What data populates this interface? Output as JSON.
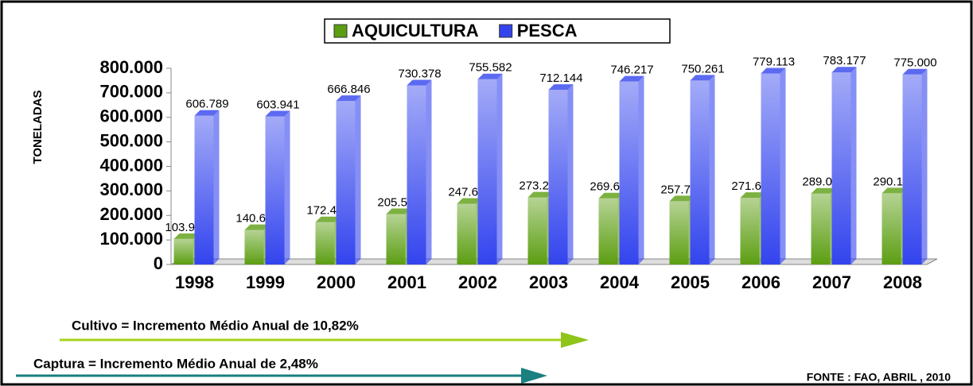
{
  "chart_data": {
    "type": "bar",
    "ylabel": "TONELADAS",
    "categories": [
      "1998",
      "1999",
      "2000",
      "2001",
      "2002",
      "2003",
      "2004",
      "2005",
      "2006",
      "2007",
      "2008"
    ],
    "series": [
      {
        "name": "AQUICULTURA",
        "color": "#5c9e12",
        "values": [
          103915,
          140657,
          172450,
          205567,
          247678,
          273268,
          269699,
          257783,
          271696,
          289050,
          290186
        ],
        "value_labels": [
          "103.915",
          "140.657",
          "172.450",
          "205.567",
          "247.678",
          "273.268",
          "269.699",
          "257.783",
          "271.696",
          "289.050",
          "290.186"
        ]
      },
      {
        "name": "PESCA",
        "color": "#3344ee",
        "values": [
          606789,
          603941,
          666846,
          730378,
          755582,
          712144,
          746217,
          750261,
          779113,
          783177,
          775000
        ],
        "value_labels": [
          "606.789",
          "603.941",
          "666.846",
          "730.378",
          "755.582",
          "712.144",
          "746.217",
          "750.261",
          "779.113",
          "783.177",
          "775.000"
        ]
      }
    ],
    "ylim": [
      0,
      800000
    ],
    "yticks": [
      0,
      {
        "value": 100000,
        "label": "100.000"
      },
      {
        "value": 200000,
        "label": "200.000"
      },
      {
        "value": 300000,
        "label": "300.000"
      },
      {
        "value": 400000,
        "label": "400.000"
      },
      {
        "value": 500000,
        "label": "500.000"
      },
      {
        "value": 600000,
        "label": "600.000"
      },
      {
        "value": 700000,
        "label": "700.000"
      },
      {
        "value": 800000,
        "label": "800.000"
      }
    ],
    "grid": false,
    "annotations": [
      "Cultivo = Incremento Médio Anual de 10,82%",
      "Captura = Incremento Médio Anual de 2,48%",
      "FONTE : FAO, ABRIL , 2010"
    ]
  }
}
